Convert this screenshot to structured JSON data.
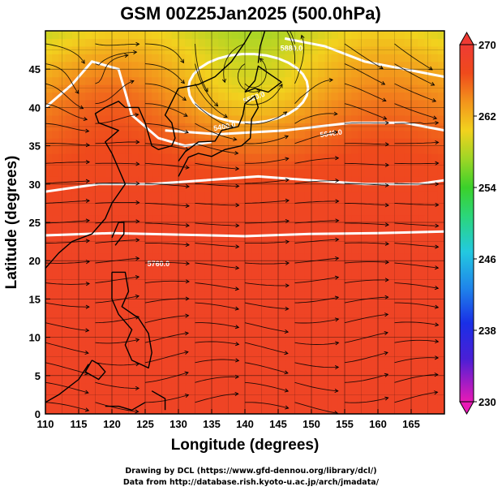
{
  "chart_data": {
    "type": "heatmap",
    "title": "GSM 00Z25Jan2025 (500.0hPa)",
    "xlabel": "Longitude (degrees)",
    "ylabel": "Latitude  (degrees)",
    "xlim": [
      110,
      170
    ],
    "ylim": [
      0,
      50
    ],
    "x_ticks": [
      110,
      115,
      120,
      125,
      130,
      135,
      140,
      145,
      150,
      155,
      160,
      165
    ],
    "y_ticks": [
      0,
      5,
      10,
      15,
      20,
      25,
      30,
      35,
      40,
      45
    ],
    "grid": true,
    "field": "temperature",
    "colorbar": {
      "min": 230,
      "max": 270,
      "labels": [
        270,
        262,
        254,
        246,
        238,
        230
      ]
    },
    "contours": [
      {
        "label": "5400.0"
      },
      {
        "label": "5520.0"
      },
      {
        "label": "5640.0"
      },
      {
        "label": "5760.0"
      },
      {
        "label": "5880.0"
      }
    ],
    "overlay": "streamlines and coastlines"
  },
  "credits": {
    "line1": "Drawing by DCL (https://www.gfd-dennou.org/library/dcl/)",
    "line2": "Data from http://database.rish.kyoto-u.ac.jp/arch/jmadata/"
  }
}
